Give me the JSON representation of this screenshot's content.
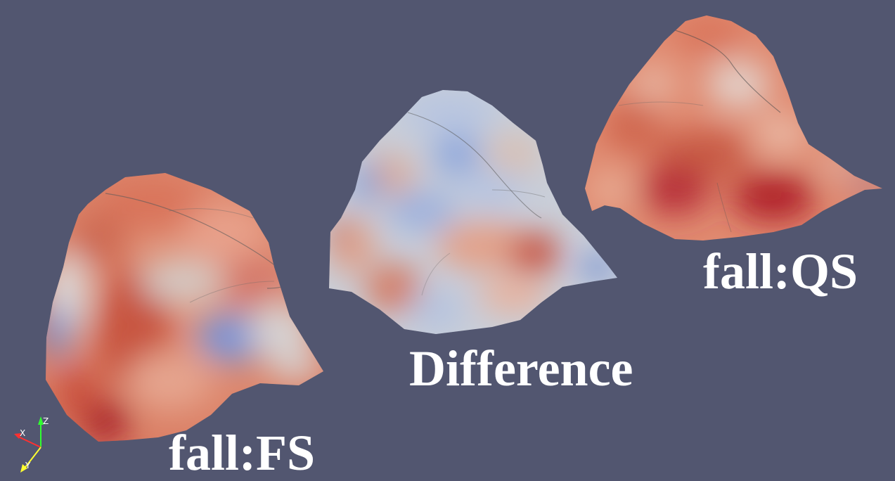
{
  "view": {
    "background": "#525670",
    "colormap": [
      "#3b4cc0",
      "#dddcdc",
      "#b40426"
    ]
  },
  "surfaces": [
    {
      "id": "fall-fs",
      "label": "fall:FS"
    },
    {
      "id": "difference",
      "label": "Difference"
    },
    {
      "id": "fall-qs",
      "label": "fall:QS"
    }
  ],
  "orientation_axes": {
    "x_label": "X",
    "y_label": "Y",
    "z_label": "Z",
    "x_color": "#ff3030",
    "y_color": "#ffff30",
    "z_color": "#30ff30"
  }
}
